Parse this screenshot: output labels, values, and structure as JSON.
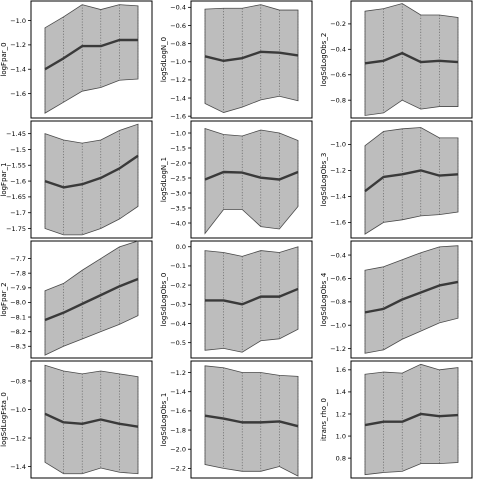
{
  "chart_data": [
    {
      "type": "area",
      "ylabel": "logFpar_0",
      "x": [
        1,
        2,
        3,
        4,
        5,
        6
      ],
      "mean": [
        -1.4,
        -1.31,
        -1.21,
        -1.21,
        -1.16,
        -1.16
      ],
      "lower": [
        -1.76,
        -1.67,
        -1.58,
        -1.55,
        -1.49,
        -1.48
      ],
      "upper": [
        -1.06,
        -0.97,
        -0.87,
        -0.91,
        -0.87,
        -0.88
      ],
      "yticks": [
        -1.6,
        -1.4,
        -1.2,
        -1.0
      ],
      "ylim": [
        -1.8,
        -0.84
      ]
    },
    {
      "type": "area",
      "ylabel": "logSdLogN_0",
      "x": [
        1,
        2,
        3,
        4,
        5,
        6
      ],
      "mean": [
        -0.94,
        -0.99,
        -0.96,
        -0.89,
        -0.9,
        -0.93
      ],
      "lower": [
        -1.46,
        -1.56,
        -1.5,
        -1.42,
        -1.38,
        -1.43
      ],
      "upper": [
        -0.42,
        -0.41,
        -0.41,
        -0.37,
        -0.43,
        -0.43
      ],
      "yticks": [
        -1.6,
        -1.4,
        -1.2,
        -1.0,
        -0.8,
        -0.6,
        -0.4
      ],
      "ylim": [
        -1.62,
        -0.33
      ]
    },
    {
      "type": "area",
      "ylabel": "logSdLogObs_2",
      "x": [
        1,
        2,
        3,
        4,
        5,
        6
      ],
      "mean": [
        -0.51,
        -0.49,
        -0.43,
        -0.5,
        -0.49,
        -0.5
      ],
      "lower": [
        -0.92,
        -0.9,
        -0.8,
        -0.87,
        -0.85,
        -0.85
      ],
      "upper": [
        -0.1,
        -0.08,
        -0.04,
        -0.13,
        -0.13,
        -0.15
      ],
      "yticks": [
        -0.8,
        -0.6,
        -0.4,
        -0.2
      ],
      "ylim": [
        -0.94,
        -0.02
      ]
    },
    {
      "type": "area",
      "ylabel": "logFpar_1",
      "x": [
        1,
        2,
        3,
        4,
        5,
        6
      ],
      "mean": [
        -1.6,
        -1.62,
        -1.61,
        -1.59,
        -1.56,
        -1.52
      ],
      "lower": [
        -1.75,
        -1.77,
        -1.77,
        -1.75,
        -1.72,
        -1.68
      ],
      "upper": [
        -1.45,
        -1.47,
        -1.48,
        -1.47,
        -1.44,
        -1.42
      ],
      "yticks": [
        -1.75,
        -1.7,
        -1.65,
        -1.6,
        -1.55,
        -1.5,
        -1.45
      ],
      "ylim": [
        -1.78,
        -1.41
      ]
    },
    {
      "type": "area",
      "ylabel": "logSdLogN_1",
      "x": [
        1,
        2,
        3,
        4,
        5,
        6
      ],
      "mean": [
        -2.55,
        -2.3,
        -2.32,
        -2.49,
        -2.55,
        -2.3
      ],
      "lower": [
        -4.35,
        -3.55,
        -3.55,
        -4.12,
        -4.2,
        -3.45
      ],
      "upper": [
        -0.85,
        -1.05,
        -1.1,
        -0.9,
        -1.0,
        -1.25
      ],
      "yticks": [
        -4.0,
        -3.5,
        -3.0,
        -2.5,
        -2.0,
        -1.5,
        -1.0
      ],
      "ylim": [
        -4.5,
        -0.6
      ]
    },
    {
      "type": "area",
      "ylabel": "logSdLogObs_3",
      "x": [
        1,
        2,
        3,
        4,
        5,
        6
      ],
      "mean": [
        -1.36,
        -1.25,
        -1.23,
        -1.2,
        -1.24,
        -1.23
      ],
      "lower": [
        -1.69,
        -1.6,
        -1.58,
        -1.55,
        -1.54,
        -1.52
      ],
      "upper": [
        -1.01,
        -0.9,
        -0.88,
        -0.87,
        -0.95,
        -0.95
      ],
      "yticks": [
        -1.6,
        -1.4,
        -1.2,
        -1.0
      ],
      "ylim": [
        -1.72,
        -0.82
      ]
    },
    {
      "type": "area",
      "ylabel": "logFpar_2",
      "x": [
        1,
        2,
        3,
        4,
        5,
        6
      ],
      "mean": [
        -8.12,
        -8.07,
        -8.01,
        -7.95,
        -7.89,
        -7.84
      ],
      "lower": [
        -8.36,
        -8.3,
        -8.25,
        -8.2,
        -8.15,
        -8.09
      ],
      "upper": [
        -7.92,
        -7.87,
        -7.78,
        -7.7,
        -7.62,
        -7.58
      ],
      "yticks": [
        -8.3,
        -8.2,
        -8.1,
        -8.0,
        -7.9,
        -7.8,
        -7.7
      ],
      "ylim": [
        -8.38,
        -7.58
      ]
    },
    {
      "type": "area",
      "ylabel": "logSdLogObs_0",
      "x": [
        1,
        2,
        3,
        4,
        5,
        6
      ],
      "mean": [
        -0.28,
        -0.28,
        -0.3,
        -0.26,
        -0.26,
        -0.22
      ],
      "lower": [
        -0.54,
        -0.53,
        -0.55,
        -0.49,
        -0.48,
        -0.43
      ],
      "upper": [
        -0.02,
        -0.03,
        -0.05,
        -0.02,
        -0.03,
        0.0
      ],
      "yticks": [
        -0.5,
        -0.4,
        -0.3,
        -0.2,
        -0.1,
        0.0
      ],
      "ylim": [
        -0.58,
        0.03
      ]
    },
    {
      "type": "area",
      "ylabel": "logSdLogObs_4",
      "x": [
        1,
        2,
        3,
        4,
        5,
        6
      ],
      "mean": [
        -0.89,
        -0.86,
        -0.78,
        -0.72,
        -0.66,
        -0.63
      ],
      "lower": [
        -1.24,
        -1.21,
        -1.12,
        -1.05,
        -0.98,
        -0.94
      ],
      "upper": [
        -0.53,
        -0.5,
        -0.44,
        -0.38,
        -0.33,
        -0.32
      ],
      "yticks": [
        -1.2,
        -1.0,
        -0.8,
        -0.6,
        -0.4
      ],
      "ylim": [
        -1.28,
        -0.28
      ]
    },
    {
      "type": "area",
      "ylabel": "logSdLogFsta_0",
      "x": [
        1,
        2,
        3,
        4,
        5,
        6
      ],
      "mean": [
        -1.03,
        -1.09,
        -1.1,
        -1.07,
        -1.1,
        -1.12
      ],
      "lower": [
        -1.37,
        -1.45,
        -1.45,
        -1.41,
        -1.44,
        -1.45
      ],
      "upper": [
        -0.69,
        -0.73,
        -0.75,
        -0.73,
        -0.75,
        -0.77
      ],
      "yticks": [
        -1.4,
        -1.2,
        -1.0,
        -0.8
      ],
      "ylim": [
        -1.48,
        -0.66
      ]
    },
    {
      "type": "area",
      "ylabel": "logSdLogObs_1",
      "x": [
        1,
        2,
        3,
        4,
        5,
        6
      ],
      "mean": [
        -1.65,
        -1.68,
        -1.72,
        -1.72,
        -1.71,
        -1.76
      ],
      "lower": [
        -2.16,
        -2.2,
        -2.23,
        -2.23,
        -2.18,
        -2.28
      ],
      "upper": [
        -1.13,
        -1.15,
        -1.2,
        -1.2,
        -1.23,
        -1.24
      ],
      "yticks": [
        -2.2,
        -2.0,
        -1.8,
        -1.6,
        -1.4,
        -1.2
      ],
      "ylim": [
        -2.3,
        -1.08
      ]
    },
    {
      "type": "area",
      "ylabel": "itrans_rho_0",
      "x": [
        1,
        2,
        3,
        4,
        5,
        6
      ],
      "mean": [
        1.1,
        1.13,
        1.13,
        1.2,
        1.18,
        1.19
      ],
      "lower": [
        0.65,
        0.67,
        0.68,
        0.75,
        0.75,
        0.76
      ],
      "upper": [
        1.56,
        1.58,
        1.57,
        1.65,
        1.6,
        1.62
      ],
      "yticks": [
        0.8,
        1.0,
        1.2,
        1.4,
        1.6
      ],
      "ylim": [
        0.62,
        1.68
      ]
    }
  ]
}
